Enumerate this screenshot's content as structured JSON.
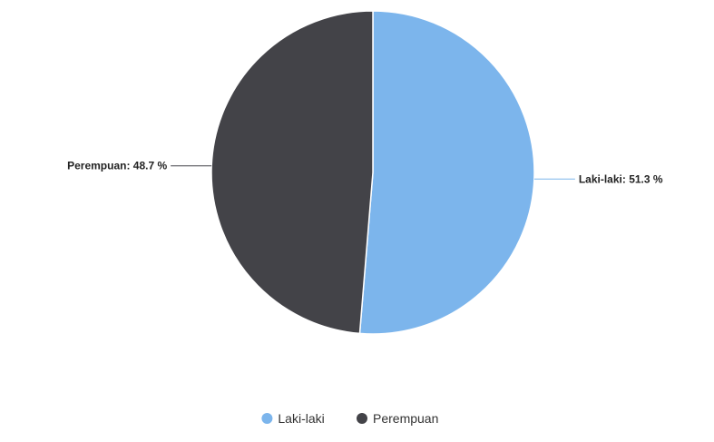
{
  "chart_data": {
    "type": "pie",
    "title": "",
    "categories": [
      "Laki-laki",
      "Perempuan"
    ],
    "values": [
      51.3,
      48.7
    ],
    "unit": "%",
    "colors": [
      "#7cb5ec",
      "#434348"
    ],
    "data_labels": [
      "Laki-laki: 51.3 %",
      "Perempuan: 48.7 %"
    ],
    "legend": {
      "position": "bottom",
      "items": [
        {
          "label": "Laki-laki",
          "color": "#7cb5ec"
        },
        {
          "label": "Perempuan",
          "color": "#434348"
        }
      ]
    }
  }
}
